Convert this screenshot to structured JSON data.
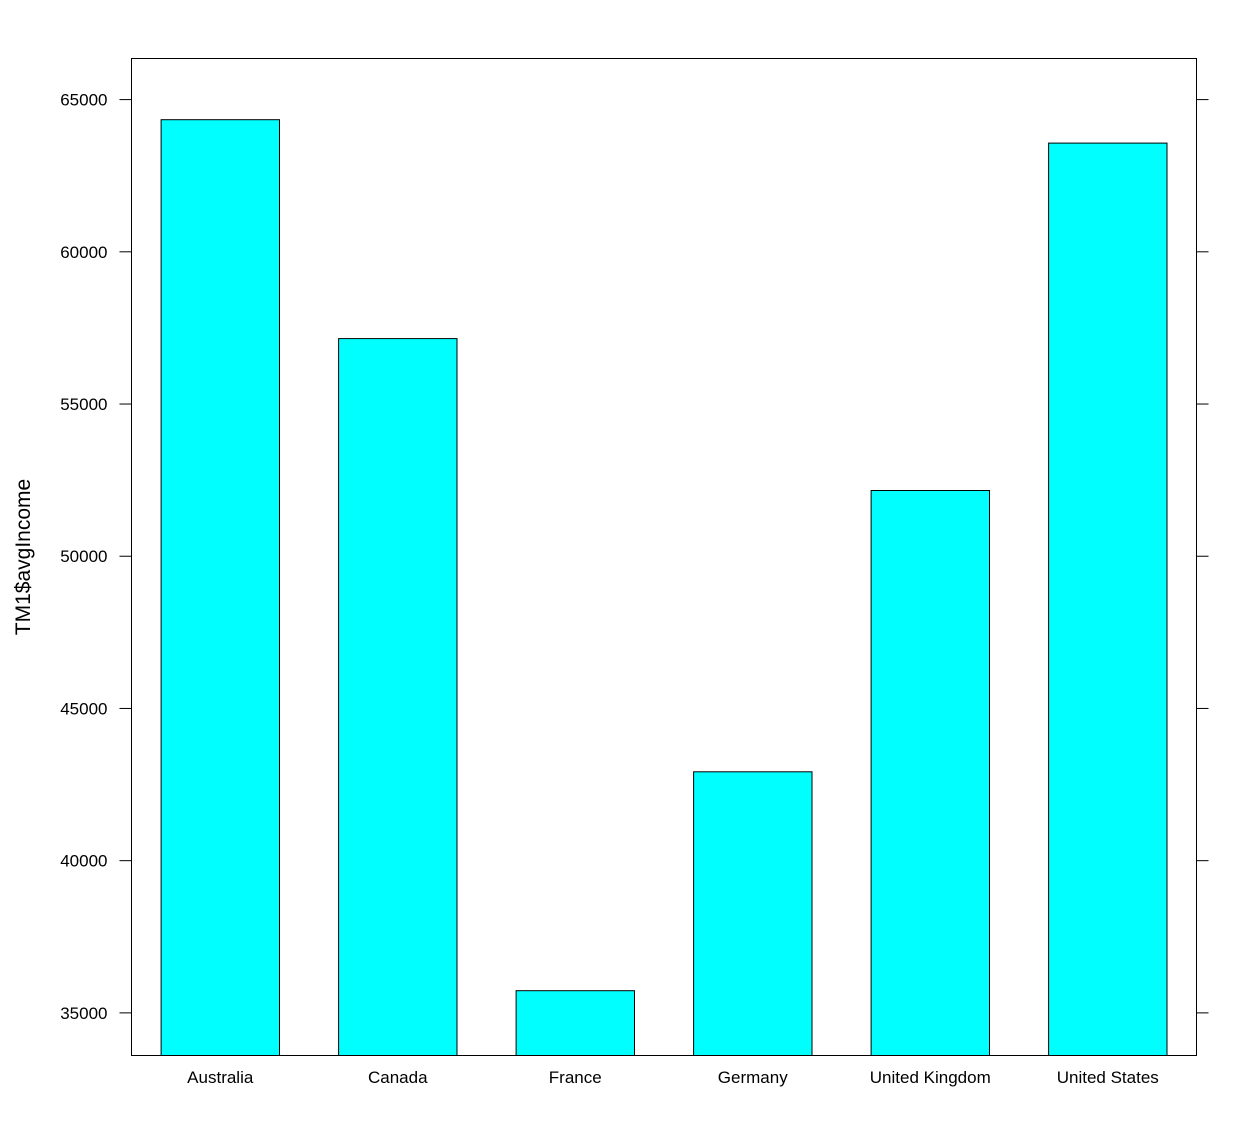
{
  "chart_data": {
    "type": "bar",
    "categories": [
      "Australia",
      "Canada",
      "France",
      "Germany",
      "United Kingdom",
      "United States"
    ],
    "values": [
      64340,
      57150,
      35730,
      42920,
      52160,
      63570
    ],
    "title": "",
    "xlabel": "",
    "ylabel": "TM1$avgIncome",
    "ylim": [
      33600,
      66350
    ],
    "yticks": [
      35000,
      40000,
      45000,
      50000,
      55000,
      60000,
      65000
    ],
    "bar_color": "#00FFFF",
    "grid": false
  }
}
